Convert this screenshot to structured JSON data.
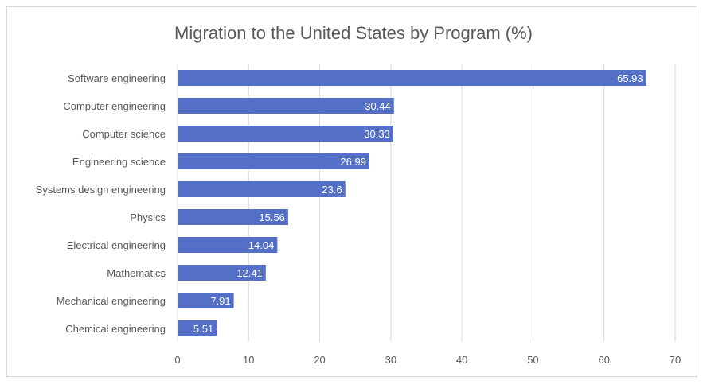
{
  "chart_data": {
    "type": "bar",
    "orientation": "horizontal",
    "title": "Migration to the United States by Program (%)",
    "categories": [
      "Software engineering",
      "Computer engineering",
      "Computer science",
      "Engineering science",
      "Systems design engineering",
      "Physics",
      "Electrical engineering",
      "Mathematics",
      "Mechanical engineering",
      "Chemical engineering"
    ],
    "values": [
      65.93,
      30.44,
      30.33,
      26.99,
      23.6,
      15.56,
      14.04,
      12.41,
      7.91,
      5.51
    ],
    "data_labels": [
      "65.93",
      "30.44",
      "30.33",
      "26.99",
      "23.6",
      "15.56",
      "14.04",
      "12.41",
      "7.91",
      "5.51"
    ],
    "xlim": [
      0,
      70
    ],
    "xticks": [
      "0",
      "10",
      "20",
      "30",
      "40",
      "50",
      "60",
      "70"
    ],
    "grid": true,
    "legend": "none",
    "bar_color": "#5470c6"
  }
}
